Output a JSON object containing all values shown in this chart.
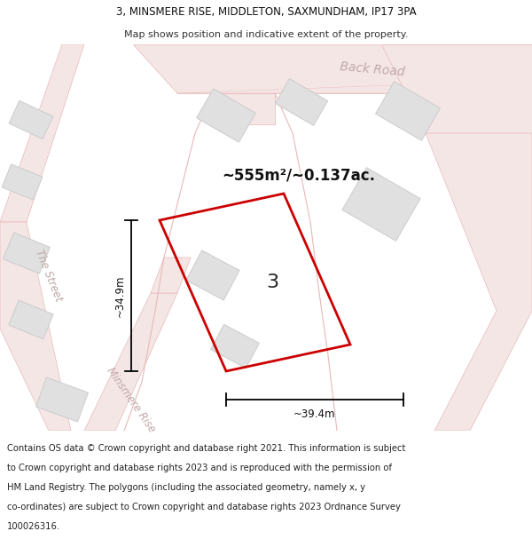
{
  "title_line1": "3, MINSMERE RISE, MIDDLETON, SAXMUNDHAM, IP17 3PA",
  "title_line2": "Map shows position and indicative extent of the property.",
  "area_text": "~555m²/~0.137ac.",
  "plot_number": "3",
  "dim_height": "~34.9m",
  "dim_width": "~39.4m",
  "road_label1": "Back Road",
  "road_label2": "The Street",
  "road_label3": "Minsmere Rise",
  "footer_lines": [
    "Contains OS data © Crown copyright and database right 2021. This information is subject",
    "to Crown copyright and database rights 2023 and is reproduced with the permission of",
    "HM Land Registry. The polygons (including the associated geometry, namely x, y",
    "co-ordinates) are subject to Crown copyright and database rights 2023 Ordnance Survey",
    "100026316."
  ],
  "map_bg": "#ffffff",
  "road_fill": "#f5e6e6",
  "road_edge": "#e8b8b8",
  "plot_color": "#cc0000",
  "building_fill": "#e0e0e0",
  "building_edge": "#cccccc",
  "footer_bg": "#ffffff",
  "header_bg": "#ffffff",
  "text_dark": "#111111",
  "road_text": "#c0a8a8"
}
